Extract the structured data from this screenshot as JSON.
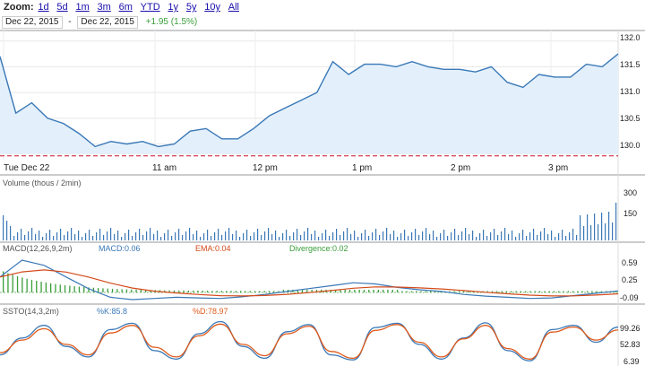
{
  "zoom": {
    "label": "Zoom:",
    "options": [
      "1d",
      "5d",
      "1m",
      "3m",
      "6m",
      "YTD",
      "1y",
      "5y",
      "10y",
      "All"
    ]
  },
  "range": {
    "from": "Dec 22, 2015",
    "separator": "-",
    "to": "Dec 22, 2015",
    "change": "+1.95 (1.5%)"
  },
  "colors": {
    "price_line": "#3a78b7",
    "price_fill": "#e3f0fb",
    "ref_line": "#c8102e",
    "macd": "#3a78b7",
    "ema": "#d44a1a",
    "divergence": "#3b9e3b",
    "sto_k": "#3a78b7",
    "sto_d": "#e05a1a"
  },
  "price_axis": [
    "132.0",
    "131.5",
    "131.0",
    "130.5",
    "130.0"
  ],
  "time_axis": [
    "Tue Dec 22",
    "11 am",
    "12 pm",
    "1 pm",
    "2 pm",
    "3 pm"
  ],
  "volume": {
    "label": "Volume (thous / 2min)",
    "axis": [
      "300",
      "150"
    ]
  },
  "macd": {
    "label": "MACD(12,26,9,2m)",
    "macd_label": "MACD:0.06",
    "ema_label": "EMA:0.04",
    "div_label": "Divergence:0.02",
    "axis": [
      "0.59",
      "0.25",
      "-0.09"
    ]
  },
  "ssto": {
    "label": "SSTO(14,3,2m)",
    "k_label": "%K:85.8",
    "d_label": "%D:78.97",
    "axis": [
      "99.26",
      "52.83",
      "6.39"
    ]
  },
  "chart_data": {
    "type": "line",
    "series": [
      {
        "name": "price",
        "x": [
          "9:30",
          "9:40",
          "9:50",
          "10:00",
          "10:10",
          "10:20",
          "10:30",
          "10:40",
          "10:50",
          "11:00",
          "11:10",
          "11:20",
          "11:30",
          "11:40",
          "11:50",
          "12:00",
          "12:10",
          "12:20",
          "12:30",
          "12:40",
          "12:50",
          "13:00",
          "13:10",
          "13:20",
          "13:30",
          "13:40",
          "13:50",
          "14:00",
          "14:10",
          "14:20",
          "14:30",
          "14:40",
          "14:50",
          "15:00",
          "15:10",
          "15:20",
          "15:30",
          "15:40",
          "15:50",
          "16:00"
        ],
        "values": [
          131.7,
          130.6,
          130.8,
          130.5,
          130.4,
          130.2,
          129.95,
          130.05,
          130.0,
          130.05,
          129.95,
          130.0,
          130.25,
          130.3,
          130.1,
          130.1,
          130.3,
          130.55,
          130.7,
          130.85,
          131.0,
          131.6,
          131.35,
          131.55,
          131.55,
          131.5,
          131.6,
          131.5,
          131.45,
          131.45,
          131.4,
          131.5,
          131.2,
          131.1,
          131.35,
          131.3,
          131.3,
          131.55,
          131.5,
          131.75
        ]
      },
      {
        "name": "MACD(12,26,9,2m)",
        "values": [
          0.3,
          0.59,
          0.5,
          0.3,
          0.1,
          -0.05,
          -0.09,
          -0.07,
          -0.05,
          -0.06,
          -0.07,
          -0.04,
          0.0,
          0.05,
          0.1,
          0.15,
          0.2,
          0.18,
          0.12,
          0.08,
          0.05,
          0.0,
          -0.03,
          -0.05,
          -0.07,
          -0.06,
          -0.02,
          0.02,
          0.06
        ]
      },
      {
        "name": "%K",
        "values": [
          20,
          60,
          90,
          40,
          15,
          80,
          95,
          30,
          10,
          70,
          99,
          40,
          12,
          75,
          92,
          20,
          8,
          85,
          95,
          45,
          10,
          60,
          96,
          30,
          6,
          80,
          90,
          50,
          85.8
        ]
      },
      {
        "name": "%D",
        "values": [
          25,
          55,
          82,
          45,
          20,
          72,
          90,
          38,
          15,
          65,
          93,
          45,
          18,
          70,
          88,
          28,
          12,
          78,
          92,
          50,
          15,
          58,
          90,
          35,
          10,
          74,
          86,
          55,
          78.97
        ]
      }
    ],
    "ylim": [
      129.8,
      132.1
    ],
    "reference_line": 129.77
  }
}
